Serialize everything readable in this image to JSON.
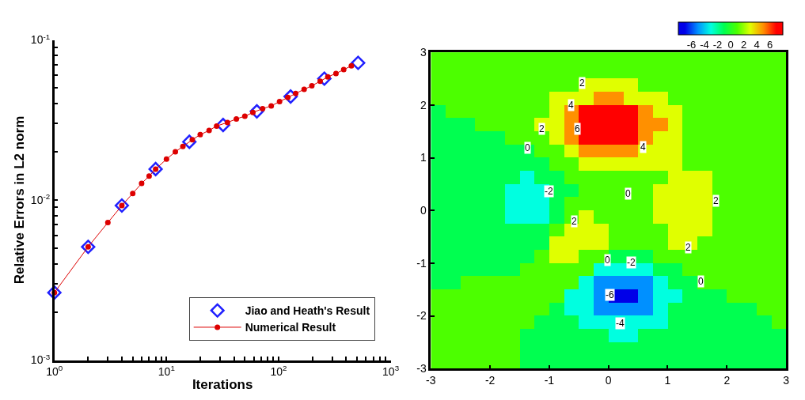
{
  "chart_data": [
    {
      "type": "line",
      "xlabel": "Iterations",
      "ylabel": "Relative Errors in L2 norm",
      "log": "xy",
      "legend": "bottom right",
      "xlim": [
        1,
        1000
      ],
      "ylim": [
        0.001,
        0.1
      ],
      "xticks": [
        {
          "value": 1,
          "label": "10$^{0}$"
        },
        {
          "value": 2,
          "label": null
        },
        {
          "value": 3,
          "label": null
        },
        {
          "value": 4,
          "label": null
        },
        {
          "value": 5,
          "label": null
        },
        {
          "value": 6,
          "label": null
        },
        {
          "value": 7,
          "label": null
        },
        {
          "value": 8,
          "label": null
        },
        {
          "value": 9,
          "label": null
        },
        {
          "value": 10,
          "label": "10$^{1}$"
        },
        {
          "value": 20,
          "label": null
        },
        {
          "value": 30,
          "label": null
        },
        {
          "value": 40,
          "label": null
        },
        {
          "value": 50,
          "label": null
        },
        {
          "value": 60,
          "label": null
        },
        {
          "value": 70,
          "label": null
        },
        {
          "value": 80,
          "label": null
        },
        {
          "value": 90,
          "label": null
        },
        {
          "value": 100,
          "label": "10$^{2}$"
        },
        {
          "value": 200,
          "label": null
        },
        {
          "value": 300,
          "label": null
        },
        {
          "value": 400,
          "label": null
        },
        {
          "value": 500,
          "label": null
        },
        {
          "value": 600,
          "label": null
        },
        {
          "value": 700,
          "label": null
        },
        {
          "value": 800,
          "label": null
        },
        {
          "value": 900,
          "label": null
        },
        {
          "value": 1000,
          "label": "10$^{3}$"
        }
      ],
      "yticks": [
        {
          "value": 0.001,
          "label": "10$^{-3}$"
        },
        {
          "value": 0.002,
          "label": null
        },
        {
          "value": 0.003,
          "label": null
        },
        {
          "value": 0.004,
          "label": null
        },
        {
          "value": 0.005,
          "label": null
        },
        {
          "value": 0.006,
          "label": null
        },
        {
          "value": 0.007,
          "label": null
        },
        {
          "value": 0.008,
          "label": null
        },
        {
          "value": 0.009,
          "label": null
        },
        {
          "value": 0.01,
          "label": "10$^{-2}$"
        },
        {
          "value": 0.02,
          "label": null
        },
        {
          "value": 0.03,
          "label": null
        },
        {
          "value": 0.04,
          "label": null
        },
        {
          "value": 0.05,
          "label": null
        },
        {
          "value": 0.06,
          "label": null
        },
        {
          "value": 0.07,
          "label": null
        },
        {
          "value": 0.08,
          "label": null
        },
        {
          "value": 0.09,
          "label": null
        },
        {
          "value": 0.1,
          "label": "10$^{-1}$"
        }
      ],
      "series": [
        {
          "name": "Jiao and Heath's Result",
          "type": "scatter",
          "marker": "diamond",
          "color": "#2020ff",
          "x": [
            1,
            2,
            4,
            8,
            16,
            32,
            64,
            128,
            256,
            512
          ],
          "values": [
            0.00264,
            0.0051,
            0.00924,
            0.0156,
            0.0231,
            0.0294,
            0.0358,
            0.0443,
            0.0573,
            0.0719
          ]
        },
        {
          "name": "Numerical Result",
          "type": "line",
          "marker": "circle",
          "line_style": "solid",
          "color": "#dd0000",
          "x": [
            1,
            2,
            3,
            4,
            5,
            6,
            7,
            8,
            10,
            12,
            14,
            17,
            20,
            24,
            28,
            35,
            42,
            50,
            59,
            72,
            86,
            102,
            121,
            142,
            169,
            198,
            235,
            275,
            325,
            381,
            446
          ],
          "values": [
            0.00264,
            0.0051,
            0.00723,
            0.00924,
            0.011,
            0.0127,
            0.0141,
            0.0156,
            0.018,
            0.02,
            0.0216,
            0.0238,
            0.0256,
            0.0272,
            0.029,
            0.0305,
            0.0321,
            0.0334,
            0.0352,
            0.0372,
            0.0387,
            0.0412,
            0.0437,
            0.0463,
            0.0491,
            0.0517,
            0.0552,
            0.0588,
            0.0617,
            0.0652,
            0.0689
          ]
        }
      ]
    },
    {
      "type": "heatmap",
      "xlim": [
        -3,
        3
      ],
      "ylim": [
        -3,
        3
      ],
      "xticks": [
        -3,
        -2,
        -1,
        0,
        1,
        2,
        3
      ],
      "yticks": [
        -3,
        -2,
        -1,
        0,
        1,
        2,
        3
      ],
      "clim": [
        -8,
        8
      ],
      "cticks": [
        -6,
        -4,
        -2,
        0,
        2,
        4,
        6
      ],
      "colors": [
        "#0000e8",
        "#0090ff",
        "#00ffe0",
        "#00ff50",
        "#4cff00",
        "#e0ff00",
        "#ff9000",
        "#ff0000"
      ],
      "x": [
        -2.875,
        -2.625,
        -2.375,
        -2.125,
        -1.875,
        -1.625,
        -1.375,
        -1.125,
        -0.875,
        -0.625,
        -0.375,
        -0.125,
        0.125,
        0.375,
        0.625,
        0.875,
        1.125,
        1.375,
        1.625,
        1.875,
        2.125,
        2.375,
        2.625,
        2.875
      ],
      "y": [
        2.875,
        2.625,
        2.375,
        2.125,
        1.875,
        1.625,
        1.375,
        1.125,
        0.875,
        0.625,
        0.375,
        0.125,
        -0.125,
        -0.375,
        -0.625,
        -0.875,
        -1.125,
        -1.375,
        -1.625,
        -1.875,
        -2.125,
        -2.375,
        -2.625,
        -2.875
      ],
      "cells": [
        [
          1,
          1,
          1,
          1,
          1,
          1,
          1,
          1,
          1,
          1,
          1,
          1,
          1,
          1,
          1,
          1,
          1,
          1,
          1,
          1,
          1,
          1,
          1,
          1
        ],
        [
          1,
          1,
          1,
          1,
          1,
          1,
          1,
          1,
          1,
          1,
          1,
          1,
          1,
          1,
          1,
          1,
          1,
          1,
          1,
          1,
          1,
          1,
          1,
          1
        ],
        [
          1,
          1,
          1,
          1,
          1,
          1,
          1,
          1,
          1,
          1,
          3,
          3,
          3,
          3,
          1,
          1,
          1,
          1,
          1,
          1,
          1,
          1,
          1,
          1
        ],
        [
          1,
          1,
          1,
          1,
          1,
          1,
          1,
          1,
          3,
          3,
          3,
          5,
          5,
          3,
          3,
          3,
          1,
          1,
          1,
          1,
          1,
          1,
          1,
          1
        ],
        [
          -1,
          1,
          1,
          1,
          1,
          1,
          1,
          1,
          3,
          5,
          7,
          7,
          7,
          7,
          5,
          3,
          3,
          1,
          1,
          1,
          1,
          1,
          1,
          1
        ],
        [
          -1,
          -1,
          -1,
          1,
          1,
          1,
          1,
          3,
          3,
          5,
          7,
          7,
          7,
          7,
          5,
          5,
          3,
          1,
          1,
          1,
          1,
          1,
          1,
          1
        ],
        [
          -1,
          -1,
          -1,
          -1,
          -1,
          1,
          1,
          1,
          3,
          5,
          7,
          7,
          7,
          7,
          5,
          3,
          3,
          1,
          1,
          1,
          1,
          1,
          1,
          1
        ],
        [
          -1,
          -1,
          -1,
          -1,
          -1,
          -1,
          -1,
          1,
          1,
          3,
          5,
          5,
          5,
          5,
          3,
          3,
          3,
          1,
          1,
          1,
          1,
          1,
          1,
          1
        ],
        [
          -1,
          -1,
          -1,
          -1,
          -1,
          -1,
          -1,
          -1,
          1,
          1,
          3,
          3,
          3,
          3,
          3,
          3,
          3,
          1,
          1,
          1,
          1,
          1,
          1,
          1
        ],
        [
          -1,
          -1,
          -1,
          -1,
          -1,
          -1,
          -3,
          -1,
          -1,
          1,
          1,
          1,
          1,
          1,
          1,
          1,
          3,
          3,
          3,
          1,
          1,
          1,
          1,
          1
        ],
        [
          -1,
          -1,
          -1,
          -1,
          -1,
          -3,
          -3,
          -3,
          -1,
          -1,
          1,
          1,
          1,
          1,
          1,
          3,
          3,
          3,
          3,
          1,
          1,
          1,
          1,
          1
        ],
        [
          -1,
          -1,
          -1,
          -1,
          -1,
          -3,
          -3,
          -3,
          -1,
          1,
          1,
          1,
          1,
          1,
          1,
          3,
          3,
          3,
          3,
          1,
          1,
          1,
          1,
          1
        ],
        [
          -1,
          -1,
          -1,
          -1,
          -1,
          -3,
          -3,
          -3,
          -1,
          1,
          3,
          1,
          1,
          1,
          1,
          3,
          3,
          3,
          3,
          1,
          1,
          1,
          1,
          1
        ],
        [
          -1,
          -1,
          -1,
          -1,
          -1,
          -1,
          -1,
          -1,
          1,
          3,
          3,
          3,
          1,
          1,
          1,
          1,
          3,
          3,
          3,
          1,
          1,
          1,
          1,
          1
        ],
        [
          -1,
          -1,
          -1,
          -1,
          -1,
          -1,
          -1,
          -1,
          3,
          3,
          3,
          3,
          1,
          1,
          1,
          1,
          3,
          3,
          1,
          1,
          1,
          1,
          1,
          1
        ],
        [
          -1,
          -1,
          -1,
          -1,
          -1,
          -1,
          -1,
          1,
          3,
          3,
          1,
          1,
          -1,
          -1,
          -1,
          1,
          1,
          1,
          1,
          1,
          1,
          1,
          1,
          1
        ],
        [
          -1,
          -1,
          -1,
          -1,
          -1,
          -1,
          1,
          1,
          1,
          1,
          1,
          -3,
          -3,
          -3,
          -3,
          -1,
          -1,
          1,
          1,
          1,
          1,
          1,
          1,
          1
        ],
        [
          -1,
          -1,
          1,
          1,
          1,
          1,
          1,
          1,
          1,
          1,
          -3,
          -5,
          -5,
          -5,
          -5,
          -3,
          -1,
          -1,
          1,
          1,
          1,
          1,
          1,
          1
        ],
        [
          1,
          1,
          1,
          1,
          1,
          1,
          1,
          1,
          1,
          -3,
          -3,
          -5,
          -7,
          -7,
          -5,
          -3,
          -3,
          -1,
          -1,
          -1,
          1,
          1,
          1,
          1
        ],
        [
          1,
          1,
          1,
          1,
          1,
          1,
          1,
          1,
          -1,
          -3,
          -3,
          -5,
          -5,
          -5,
          -5,
          -3,
          -1,
          -1,
          -1,
          -1,
          -1,
          -1,
          1,
          1
        ],
        [
          1,
          1,
          1,
          1,
          1,
          1,
          1,
          -1,
          -1,
          -1,
          -3,
          -3,
          -3,
          -3,
          -3,
          -3,
          -1,
          -1,
          -1,
          -1,
          -1,
          -1,
          -1,
          1
        ],
        [
          1,
          1,
          1,
          1,
          1,
          1,
          -1,
          -1,
          -1,
          -1,
          -1,
          -1,
          -3,
          -3,
          -1,
          -1,
          -1,
          -1,
          -1,
          -1,
          -1,
          -1,
          -1,
          -1
        ],
        [
          1,
          1,
          1,
          1,
          1,
          1,
          -1,
          -1,
          -1,
          -1,
          -1,
          -1,
          -1,
          -1,
          -1,
          -1,
          -1,
          -1,
          -1,
          -1,
          -1,
          -1,
          -1,
          -1
        ],
        [
          1,
          1,
          1,
          1,
          1,
          1,
          -1,
          -1,
          -1,
          -1,
          -1,
          -1,
          -1,
          -1,
          -1,
          -1,
          -1,
          -1,
          -1,
          -1,
          -1,
          -1,
          -1,
          -1
        ]
      ],
      "annotations": [
        "2",
        "4",
        "2",
        "6",
        "0",
        "4",
        "-2",
        "0",
        "2",
        "2",
        "2",
        "0",
        "-2",
        "0",
        "-6",
        "-4"
      ]
    }
  ]
}
